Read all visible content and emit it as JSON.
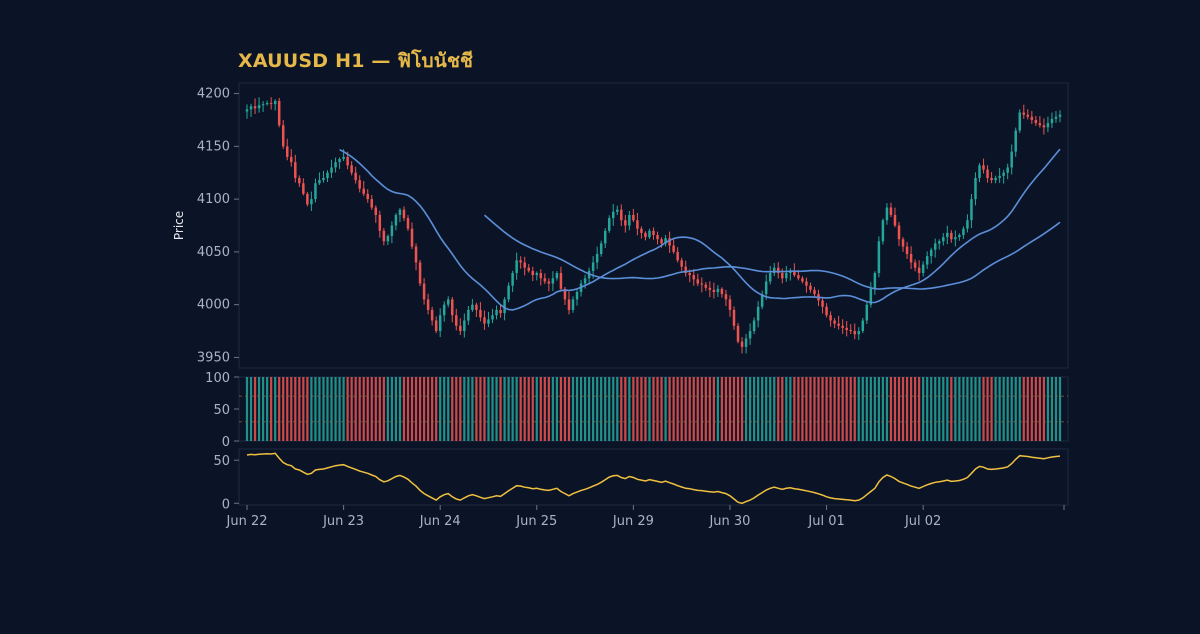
{
  "title": "XAUUSD H1 — ฟิโบนัชชี",
  "colors": {
    "background": "#0b1426",
    "bull": "#26a69a",
    "bear": "#ef5350",
    "ma": "#5b8fd9",
    "oscillator": "#f0c040",
    "title": "#e6b84a",
    "axis_text": "#a9b3c6"
  },
  "chart_data": [
    {
      "type": "candlestick",
      "panel": "price",
      "ylabel": "Price",
      "ylim": [
        3940,
        4210
      ],
      "yticks": [
        3950,
        4000,
        4050,
        4100,
        4150,
        4200
      ],
      "xlabels": [
        "Jun 22",
        "Jun 23",
        "Jun 24",
        "Jun 25",
        "Jun 29",
        "Jun 30",
        "Jul 01",
        "Jul 02"
      ],
      "bars_per_day": 24,
      "close": [
        4185,
        4188,
        4186,
        4189,
        4190,
        4191,
        4190,
        4193,
        4170,
        4150,
        4140,
        4135,
        4120,
        4115,
        4105,
        4095,
        4100,
        4115,
        4118,
        4120,
        4125,
        4130,
        4135,
        4138,
        4140,
        4132,
        4125,
        4118,
        4110,
        4105,
        4100,
        4092,
        4085,
        4070,
        4060,
        4065,
        4075,
        4085,
        4090,
        4082,
        4072,
        4055,
        4040,
        4020,
        4005,
        3995,
        3985,
        3975,
        3990,
        4000,
        4005,
        3990,
        3980,
        3975,
        3985,
        3995,
        4000,
        3995,
        3988,
        3982,
        3986,
        3990,
        3995,
        3992,
        4005,
        4018,
        4030,
        4042,
        4040,
        4035,
        4032,
        4028,
        4030,
        4025,
        4022,
        4020,
        4025,
        4030,
        4015,
        4005,
        3995,
        4005,
        4012,
        4020,
        4025,
        4032,
        4040,
        4048,
        4058,
        4070,
        4082,
        4088,
        4090,
        4080,
        4075,
        4085,
        4080,
        4072,
        4068,
        4064,
        4070,
        4066,
        4062,
        4058,
        4063,
        4056,
        4050,
        4042,
        4036,
        4030,
        4028,
        4024,
        4020,
        4019,
        4016,
        4014,
        4012,
        4015,
        4010,
        4005,
        3995,
        3980,
        3965,
        3960,
        3968,
        3975,
        3985,
        3998,
        4010,
        4022,
        4030,
        4035,
        4030,
        4025,
        4030,
        4032,
        4028,
        4025,
        4022,
        4018,
        4014,
        4010,
        4004,
        3998,
        3990,
        3985,
        3982,
        3980,
        3978,
        3976,
        3975,
        3972,
        3975,
        3985,
        4000,
        4015,
        4030,
        4060,
        4080,
        4092,
        4085,
        4075,
        4062,
        4055,
        4048,
        4040,
        4035,
        4030,
        4038,
        4046,
        4052,
        4058,
        4060,
        4064,
        4068,
        4062,
        4064,
        4066,
        4072,
        4080,
        4100,
        4120,
        4132,
        4128,
        4120,
        4118,
        4120,
        4122,
        4125,
        4130,
        4145,
        4165,
        4182,
        4180,
        4178,
        4175,
        4172,
        4170,
        4168,
        4172,
        4176,
        4178,
        4180
      ],
      "moving_averages": [
        {
          "type": "SMA",
          "period": 24
        },
        {
          "type": "SMA",
          "period": 60
        }
      ]
    },
    {
      "type": "bar",
      "panel": "histogram",
      "ylim": [
        0,
        100
      ],
      "yticks": [
        0,
        50,
        100
      ],
      "levels": [
        30,
        70
      ]
    },
    {
      "type": "line",
      "panel": "oscillator",
      "ylim": [
        -2,
        63
      ],
      "yticks": [
        0,
        50
      ]
    }
  ]
}
